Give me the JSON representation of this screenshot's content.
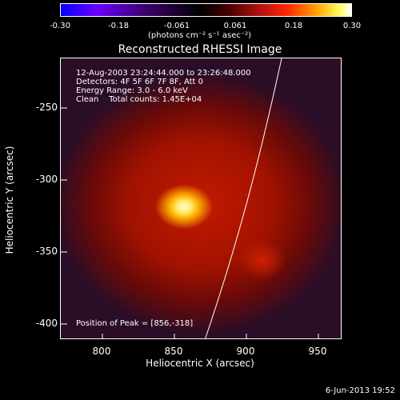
{
  "colorbar": {
    "tick_labels": [
      "-0.30",
      "-0.18",
      "-0.061",
      "0.061",
      "0.18",
      "0.30"
    ],
    "units_label": "(photons cm⁻² s⁻¹ asec⁻²)"
  },
  "title": "Reconstructed RHESSI Image",
  "info": {
    "time_range": "12-Aug-2003 23:24:44.000 to 23:26:48.000",
    "detectors": "Detectors: 4F 5F 6F 7F 8F, Att 0",
    "energy": "Energy Range: 3.0 - 6.0 keV",
    "clean": "Clean    Total counts: 1.45E+04",
    "peak": "Position of Peak = [856,-318]"
  },
  "axes": {
    "x_label": "Heliocentric X (arcsec)",
    "y_label": "Heliocentric Y (arcsec)",
    "x_ticks": [
      "800",
      "850",
      "900",
      "950"
    ],
    "y_ticks": [
      "-250",
      "-300",
      "-350",
      "-400"
    ]
  },
  "timestamp": "6-Jun-2013 19:52"
}
